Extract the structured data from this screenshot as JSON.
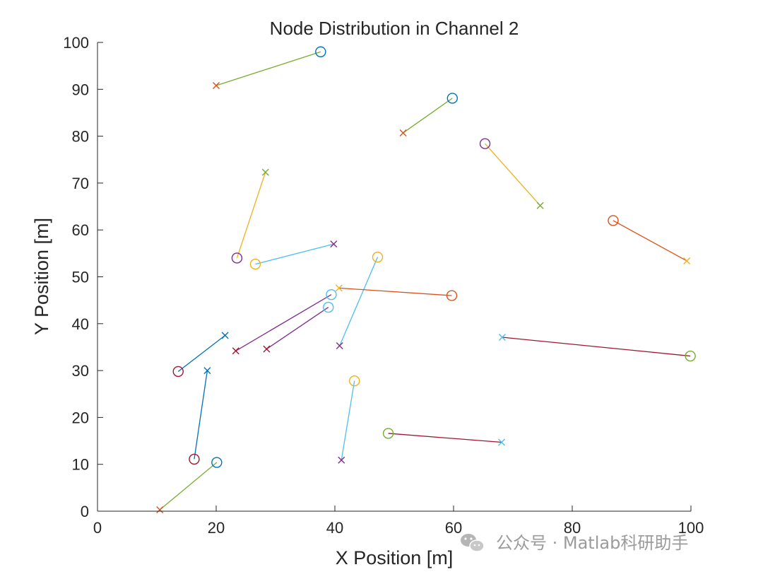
{
  "chart_data": {
    "type": "scatter",
    "title": "Node Distribution in Channel 2",
    "xlabel": "X Position [m]",
    "ylabel": "Y Position [m]",
    "xlim": [
      0,
      100
    ],
    "ylim": [
      0,
      100
    ],
    "xticks": [
      "0",
      "20",
      "40",
      "60",
      "80",
      "100"
    ],
    "yticks": [
      "0",
      "10",
      "20",
      "30",
      "40",
      "50",
      "60",
      "70",
      "80",
      "90",
      "100"
    ],
    "grid": false,
    "legend": "none",
    "markers": {
      "transmitter": "o",
      "receiver": "x"
    },
    "pairs": [
      {
        "tx": [
          37.6,
          98.0
        ],
        "rx": [
          20.0,
          90.8
        ],
        "line_color": "#77ac30",
        "tx_color": "#0072bd",
        "rx_color": "#d95319"
      },
      {
        "tx": [
          59.8,
          88.1
        ],
        "rx": [
          51.5,
          80.7
        ],
        "line_color": "#77ac30",
        "tx_color": "#0072bd",
        "rx_color": "#d95319"
      },
      {
        "tx": [
          65.3,
          78.4
        ],
        "rx": [
          74.6,
          65.2
        ],
        "line_color": "#edb120",
        "tx_color": "#7e2f8e",
        "rx_color": "#77ac30"
      },
      {
        "tx": [
          23.5,
          54.0
        ],
        "rx": [
          28.3,
          72.3
        ],
        "line_color": "#edb120",
        "tx_color": "#7e2f8e",
        "rx_color": "#77ac30"
      },
      {
        "tx": [
          86.9,
          62.0
        ],
        "rx": [
          99.3,
          53.4
        ],
        "line_color": "#d95319",
        "tx_color": "#d95319",
        "rx_color": "#edb120"
      },
      {
        "tx": [
          26.6,
          52.7
        ],
        "rx": [
          39.8,
          57.0
        ],
        "line_color": "#4dbeee",
        "tx_color": "#edb120",
        "rx_color": "#7e2f8e"
      },
      {
        "tx": [
          47.2,
          54.2
        ],
        "rx": [
          40.8,
          35.3
        ],
        "line_color": "#4dbeee",
        "tx_color": "#edb120",
        "rx_color": "#7e2f8e"
      },
      {
        "tx": [
          59.7,
          46.0
        ],
        "rx": [
          40.7,
          47.6
        ],
        "line_color": "#d95319",
        "tx_color": "#d95319",
        "rx_color": "#edb120"
      },
      {
        "tx": [
          39.4,
          46.2
        ],
        "rx": [
          23.3,
          34.2
        ],
        "line_color": "#7e2f8e",
        "tx_color": "#4dbeee",
        "rx_color": "#a2142f"
      },
      {
        "tx": [
          38.9,
          43.5
        ],
        "rx": [
          28.5,
          34.6
        ],
        "line_color": "#7e2f8e",
        "tx_color": "#4dbeee",
        "rx_color": "#a2142f"
      },
      {
        "tx": [
          99.9,
          33.1
        ],
        "rx": [
          68.2,
          37.1
        ],
        "line_color": "#a2142f",
        "tx_color": "#77ac30",
        "rx_color": "#4dbeee"
      },
      {
        "tx": [
          13.6,
          29.8
        ],
        "rx": [
          21.5,
          37.5
        ],
        "line_color": "#0072bd",
        "tx_color": "#a2142f",
        "rx_color": "#0072bd"
      },
      {
        "tx": [
          16.3,
          11.1
        ],
        "rx": [
          18.5,
          30.0
        ],
        "line_color": "#0072bd",
        "tx_color": "#a2142f",
        "rx_color": "#0072bd"
      },
      {
        "tx": [
          43.3,
          27.8
        ],
        "rx": [
          41.1,
          10.9
        ],
        "line_color": "#4dbeee",
        "tx_color": "#edb120",
        "rx_color": "#7e2f8e"
      },
      {
        "tx": [
          49.0,
          16.6
        ],
        "rx": [
          68.1,
          14.7
        ],
        "line_color": "#a2142f",
        "tx_color": "#77ac30",
        "rx_color": "#4dbeee"
      },
      {
        "tx": [
          20.1,
          10.4
        ],
        "rx": [
          10.5,
          0.3
        ],
        "line_color": "#77ac30",
        "tx_color": "#0072bd",
        "rx_color": "#d95319"
      }
    ]
  },
  "watermark": {
    "text": "公众号 · Matlab科研助手",
    "icon": "wechat-icon"
  }
}
